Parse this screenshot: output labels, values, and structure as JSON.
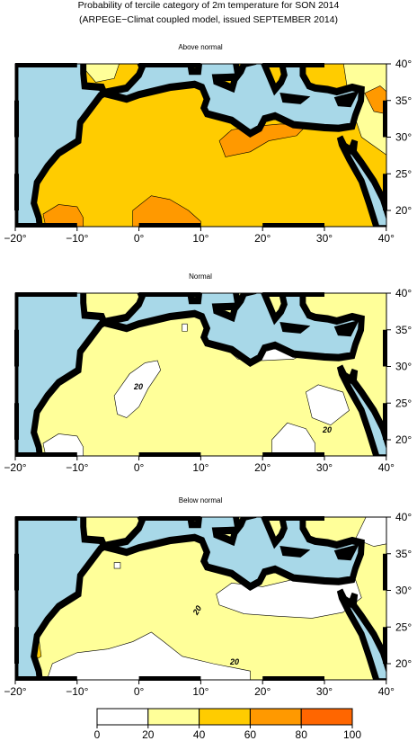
{
  "header": {
    "title": "Probability of tercile category of 2m temperature for SON 2014",
    "subtitle": "(ARPEGE−Climat coupled model, issued SEPTEMBER 2014)"
  },
  "panels": [
    {
      "title": "Above normal",
      "contour_labels": []
    },
    {
      "title": "Normal",
      "contour_labels": [
        "20",
        "20"
      ]
    },
    {
      "title": "Below normal",
      "contour_labels": [
        "20",
        "20"
      ]
    }
  ],
  "axes": {
    "lon_ticks": [
      {
        "value": -20,
        "label": "−20°"
      },
      {
        "value": -10,
        "label": "−10°"
      },
      {
        "value": 0,
        "label": "0°"
      },
      {
        "value": 10,
        "label": "10°"
      },
      {
        "value": 20,
        "label": "20°"
      },
      {
        "value": 30,
        "label": "30°"
      },
      {
        "value": 40,
        "label": "40°"
      }
    ],
    "lat_ticks": [
      {
        "value": 20,
        "label": "20°"
      },
      {
        "value": 25,
        "label": "25°"
      },
      {
        "value": 30,
        "label": "30°"
      },
      {
        "value": 35,
        "label": "35°"
      },
      {
        "value": 40,
        "label": "40°"
      }
    ]
  },
  "colorbar": {
    "ticks": [
      0,
      20,
      40,
      60,
      80,
      100
    ],
    "colors": [
      "#ffffff",
      "#ffff99",
      "#ffcc00",
      "#ff9900",
      "#ff6600"
    ]
  }
}
